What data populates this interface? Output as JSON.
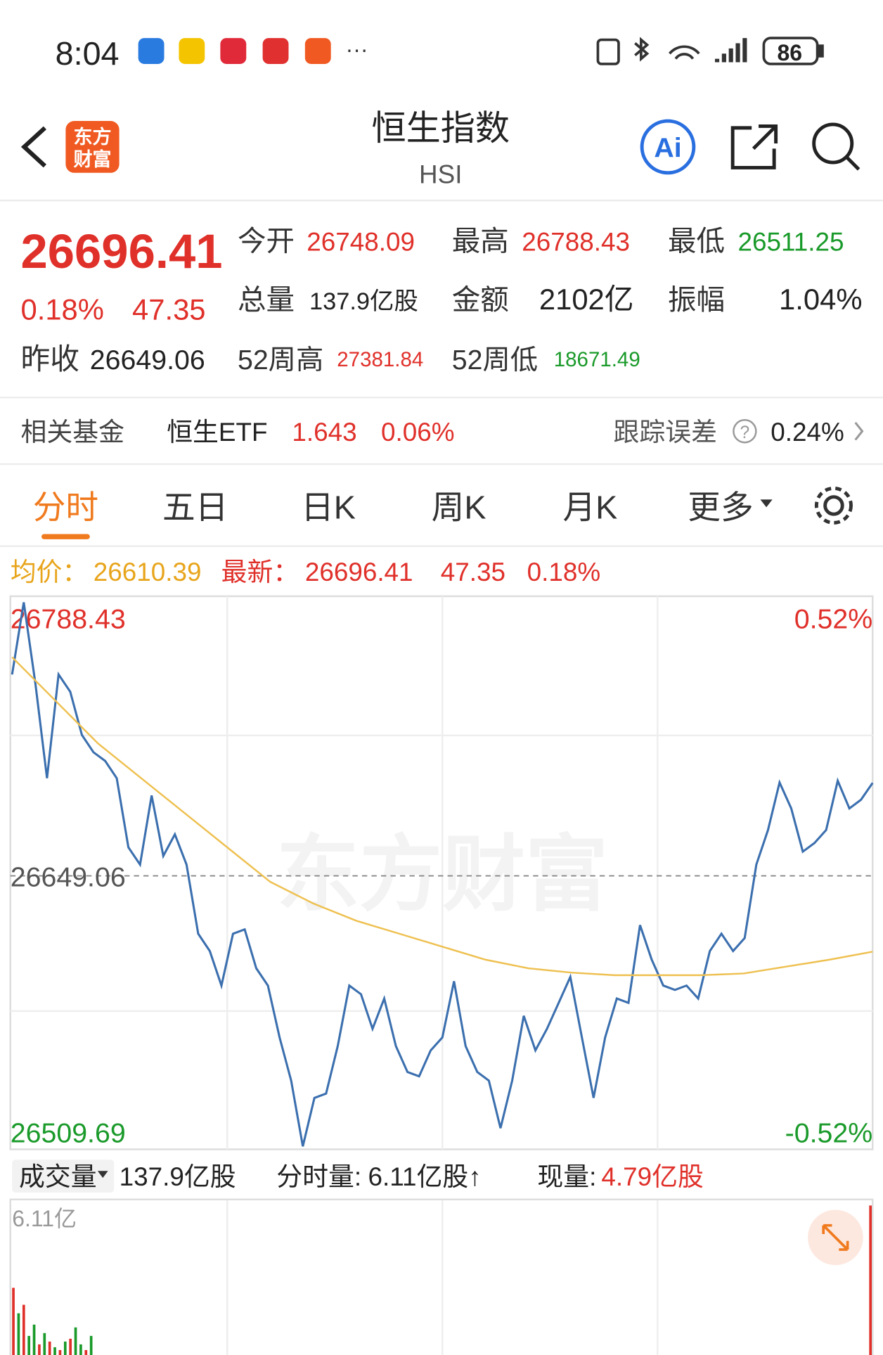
{
  "status_bar": {
    "time": "8:04",
    "battery": "86"
  },
  "header": {
    "logo": [
      "东方",
      "财富"
    ],
    "title": "恒生指数",
    "code": "HSI",
    "ai": "Ai"
  },
  "quote": {
    "price": 26696.41,
    "change_pct": "0.18%",
    "change": 47.35,
    "prev_close": {
      "label": "昨收",
      "value": 26649.06
    },
    "fields": [
      {
        "label": "今开",
        "value": 26748.09
      },
      {
        "label": "最高",
        "value": 26788.43
      },
      {
        "label": "最低",
        "value": 26511.25
      },
      {
        "label": "总量",
        "value": "137.9亿股"
      },
      {
        "label": "金额",
        "value": "2102亿"
      },
      {
        "label": "振幅",
        "value": "1.04%"
      },
      {
        "label": "52周高",
        "value": 27381.84
      },
      {
        "label": "52周低",
        "value": 18671.49
      }
    ]
  },
  "fund": {
    "label": "相关基金",
    "name": "恒生ETF",
    "price": 1.643,
    "change_pct": "0.06%",
    "tracking_label": "跟踪误差",
    "help": "?",
    "tracking_error": "0.24%"
  },
  "tabs": [
    "分时",
    "五日",
    "日K",
    "周K",
    "月K",
    "更多"
  ],
  "chart": {
    "type": "line",
    "info": {
      "avg_label": "均价：",
      "avg": 26610.39,
      "last_label": "最新：",
      "last": 26696.41,
      "change": 47.35,
      "change_pct": "0.18%"
    },
    "watermark": "东方财富",
    "ylim": [
      26509.69,
      26788.43
    ],
    "yticks": [
      26509.69,
      26649.06,
      26788.43
    ],
    "y2lim": [
      -0.52,
      0.52
    ],
    "y2ticks": [
      {
        "value": -0.52,
        "label": "-0.52%"
      },
      {
        "value": 0.52,
        "label": "0.52%"
      }
    ],
    "series": [
      {
        "color": "#3b6fae",
        "values": [
          26751.67,
          26788.43,
          26747.27,
          26698.83,
          26751.67,
          26742.87,
          26720.85,
          26712.04,
          26707.63,
          26698.83,
          26663.59,
          26654.79,
          26690.02,
          26659.19,
          26670.2,
          26654.79,
          26619.55,
          26610.75,
          26593.13,
          26619.55,
          26621.76,
          26601.94,
          26593.13,
          26566.71,
          26544.69,
          26511.25,
          26535.88,
          26538.08,
          26562.3,
          26593.13,
          26588.73,
          26571.11,
          26586.52,
          26562.3,
          26549.09,
          26546.89,
          26560.1,
          26566.71,
          26595.33,
          26562.3,
          26549.09,
          26544.69,
          26520.46,
          26544.69,
          26577.72,
          26560.1,
          26571.11,
          26584.32,
          26597.53,
          26566.71,
          26535.88,
          26566.71,
          26586.52,
          26584.32,
          26623.96,
          26606.34,
          26593.13,
          26590.93,
          26593.13,
          26586.52,
          26610.75,
          26619.55,
          26610.75,
          26617.35,
          26654.79,
          26672.4,
          26696.62,
          26683.41,
          26661.39,
          26665.8,
          26672.4,
          26697.5,
          26683.41,
          26687.82,
          26696.41
        ]
      },
      {
        "color": "#eec050",
        "values": [
          26760.48,
          26738.46,
          26716.44,
          26698.83,
          26681.21,
          26663.59,
          26645.98,
          26634.97,
          26626.16,
          26619.55,
          26612.95,
          26606.34,
          26601.94,
          26599.74,
          26598.41,
          26598.41,
          26598.41,
          26599.29,
          26602.82,
          26606.34,
          26610.39
        ]
      }
    ]
  },
  "volume": {
    "label": "成交量",
    "total": "137.9亿股",
    "minute_label": "分时量:",
    "minute": "6.11亿股↑",
    "now_label": "现量:",
    "now": "4.79亿股",
    "ylim": [
      0,
      6.11
    ],
    "yticks": [
      {
        "value": 6.11,
        "label": "6.11亿"
      }
    ],
    "bars": [
      3.2,
      2.3,
      2.6,
      1.5,
      1.9,
      1.2,
      1.6,
      1.3,
      1.1,
      1.0,
      1.3,
      1.4,
      1.8,
      1.2,
      1.0,
      1.5
    ],
    "colors": [
      "#e0302a",
      "#1a9a2a",
      "#e0302a",
      "#1a9a2a",
      "#1a9a2a",
      "#e0302a",
      "#1a9a2a",
      "#e0302a",
      "#1a9a2a",
      "#e0302a",
      "#1a9a2a",
      "#e0302a",
      "#1a9a2a",
      "#1a9a2a",
      "#e0302a",
      "#1a9a2a"
    ],
    "latest": 6.11,
    "latest_color": "#e0302a"
  }
}
